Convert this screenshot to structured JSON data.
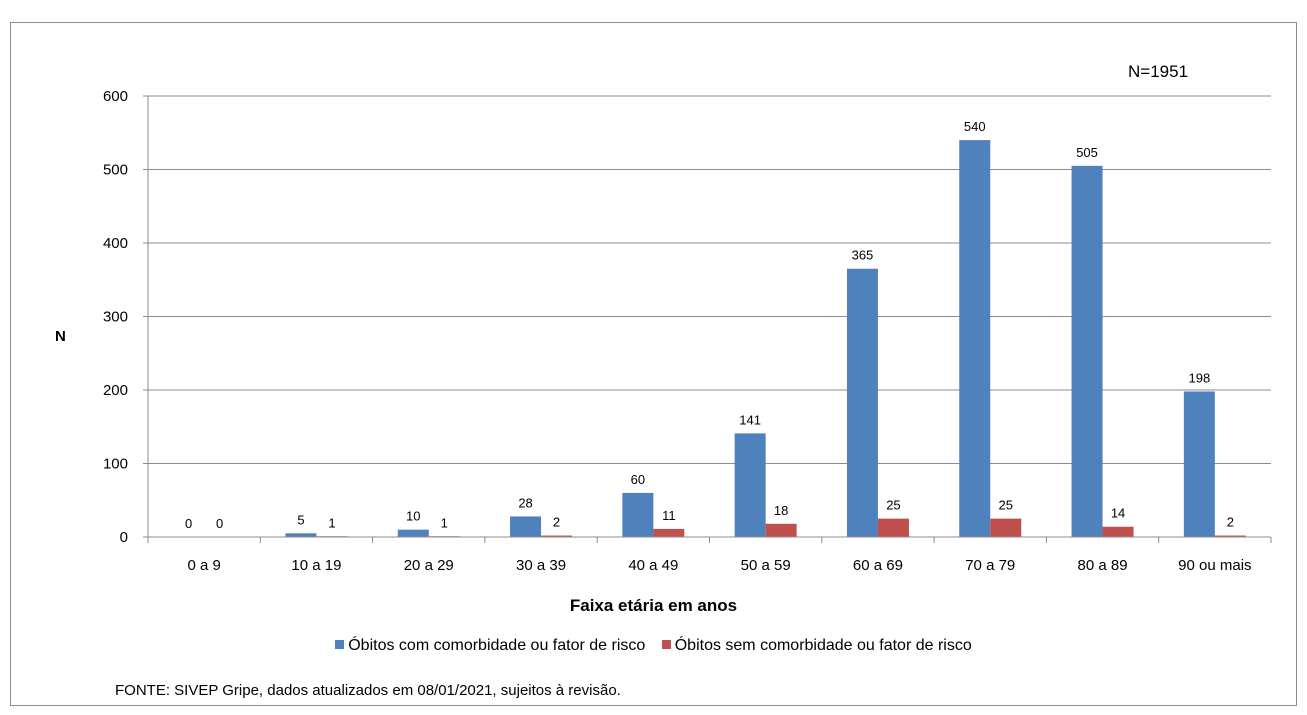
{
  "note_n": "N=1951",
  "source": "FONTE:  SIVEP Gripe, dados  atualizados em 08/01/2021, sujeitos à revisão.",
  "colors": {
    "series1": "#4f81bd",
    "series2": "#c0504d",
    "grid": "#8c8c8c"
  },
  "chart_data": {
    "type": "bar",
    "title": "",
    "xlabel": "Faixa etária em anos",
    "ylabel": "N",
    "ylim": [
      0,
      600
    ],
    "yticks": [
      0,
      100,
      200,
      300,
      400,
      500,
      600
    ],
    "grid": true,
    "legend_position": "bottom",
    "categories": [
      "0 a 9",
      "10 a 19",
      "20 a 29",
      "30 a 39",
      "40 a 49",
      "50 a 59",
      "60 a 69",
      "70 a 79",
      "80 a 89",
      "90 ou mais"
    ],
    "series": [
      {
        "name": "Óbitos com comorbidade ou fator de risco",
        "color": "#4f81bd",
        "values": [
          0,
          5,
          10,
          28,
          60,
          141,
          365,
          540,
          505,
          198
        ]
      },
      {
        "name": "Óbitos sem comorbidade ou fator de risco",
        "color": "#c0504d",
        "values": [
          0,
          1,
          1,
          2,
          11,
          18,
          25,
          25,
          14,
          2
        ]
      }
    ]
  }
}
